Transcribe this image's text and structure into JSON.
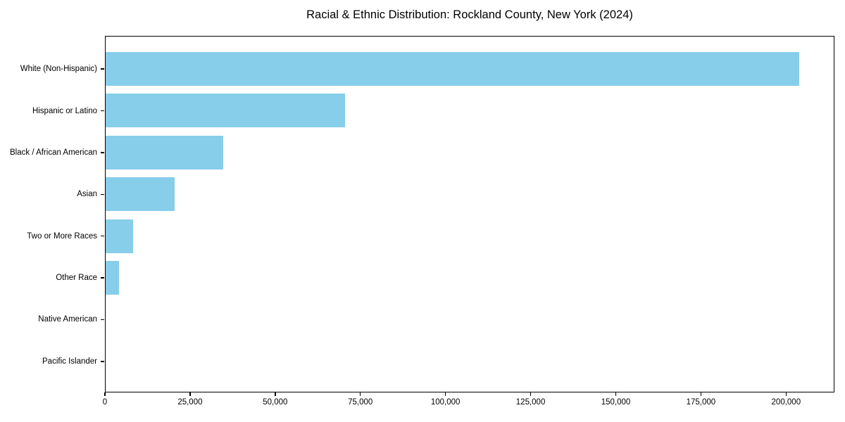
{
  "figure": {
    "background": "#ffffff",
    "text_color": "#000000",
    "spine_color": "#000000"
  },
  "chart_data": {
    "type": "bar",
    "orientation": "horizontal",
    "title": "Racial & Ethnic Distribution: Rockland County, New York (2024)",
    "categories": [
      "White (Non-Hispanic)",
      "Hispanic or Latino",
      "Black / African American",
      "Asian",
      "Two or More Races",
      "Other Race",
      "Native American",
      "Pacific Islander"
    ],
    "values": [
      204000,
      70500,
      34600,
      20200,
      8100,
      4000,
      0,
      0
    ],
    "bar_color": "#87CEEB",
    "bar_height_fraction": 0.8,
    "xlabel": "",
    "ylabel": "",
    "xlim": [
      0,
      214200
    ],
    "xticks": [
      0,
      25000,
      50000,
      75000,
      100000,
      125000,
      150000,
      175000,
      200000
    ],
    "xtick_labels": [
      "0",
      "25,000",
      "50,000",
      "75,000",
      "100,000",
      "125,000",
      "150,000",
      "175,000",
      "200,000"
    ],
    "grid": false,
    "legend_position": "none"
  }
}
